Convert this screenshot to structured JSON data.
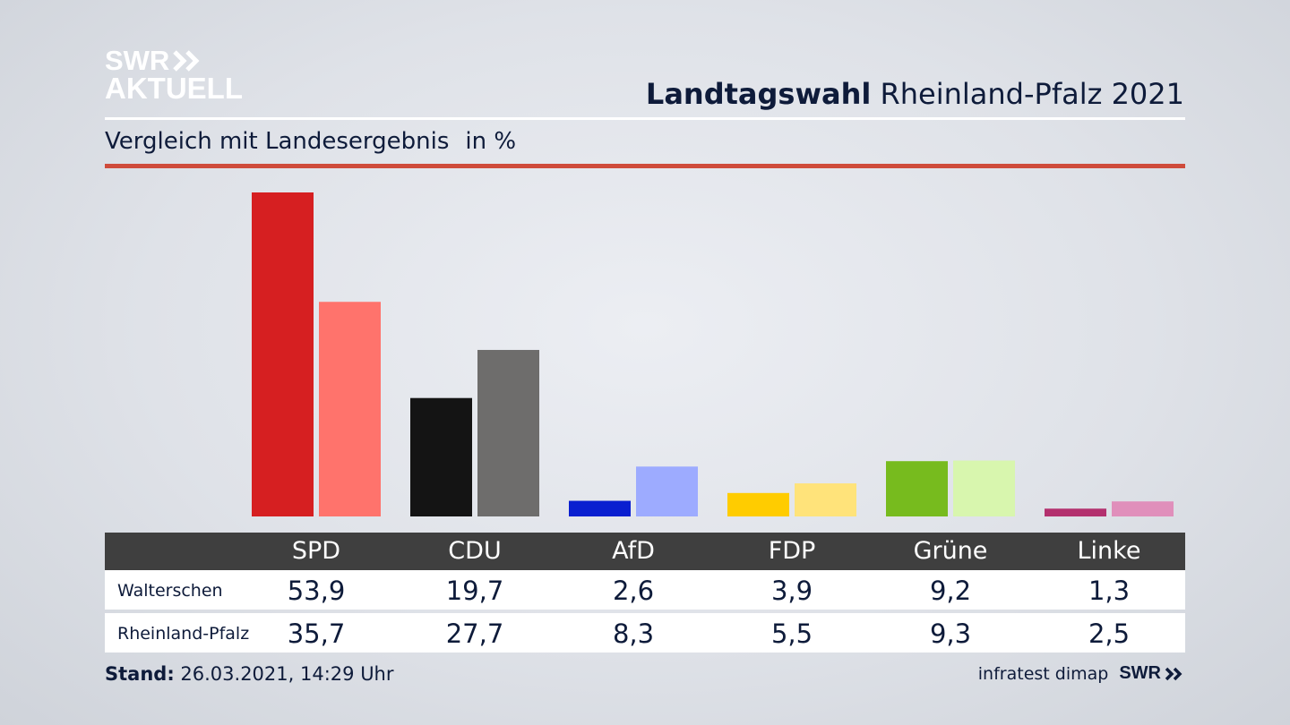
{
  "branding": {
    "logo_line1": "SWR",
    "logo_line2": "AKTUELL",
    "footer_source": "infratest dimap",
    "footer_logo": "SWR"
  },
  "header": {
    "title_bold": "Landtagswahl",
    "title_rest": "Rheinland-Pfalz 2021",
    "subtitle": "Vergleich mit Landesergebnis",
    "unit": "in %"
  },
  "footer": {
    "stand_label": "Stand:",
    "stand_value": "26.03.2021, 14:29 Uhr"
  },
  "colors": {
    "accent_rule": "#cf4b3b",
    "table_header": "#3f3f3f",
    "text": "#0e1b3a"
  },
  "chart_data": {
    "type": "bar",
    "categories": [
      "SPD",
      "CDU",
      "AfD",
      "FDP",
      "Grüne",
      "Linke"
    ],
    "series": [
      {
        "name": "Walterschen",
        "values": [
          53.9,
          19.7,
          2.6,
          3.9,
          9.2,
          1.3
        ],
        "colors": [
          "#d61f21",
          "#141414",
          "#0a1fd0",
          "#ffcc00",
          "#77bb1e",
          "#b3306e"
        ]
      },
      {
        "name": "Rheinland-Pfalz",
        "values": [
          35.7,
          27.7,
          8.3,
          5.5,
          9.3,
          2.5
        ],
        "colors": [
          "#ff736c",
          "#6e6d6c",
          "#9dabff",
          "#ffe37a",
          "#d8f6ae",
          "#e08fbb"
        ]
      }
    ],
    "display_values": [
      [
        "53,9",
        "19,7",
        "2,6",
        "3,9",
        "9,2",
        "1,3"
      ],
      [
        "35,7",
        "27,7",
        "8,3",
        "5,5",
        "9,3",
        "2,5"
      ]
    ],
    "ylim": [
      0,
      54
    ],
    "grid": false,
    "legend": "table-below"
  }
}
